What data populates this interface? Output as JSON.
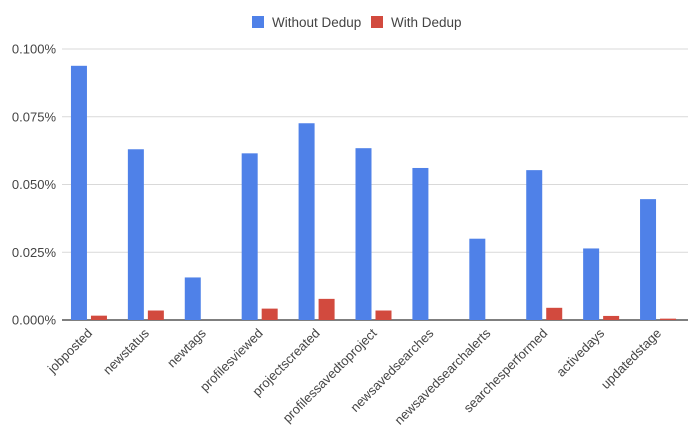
{
  "chart_data": {
    "type": "bar",
    "title": "",
    "xlabel": "",
    "ylabel": "",
    "ylim": [
      0,
      0.1
    ],
    "y_ticks": [
      "0.000%",
      "0.025%",
      "0.050%",
      "0.075%",
      "0.100%"
    ],
    "y_tick_values": [
      0,
      0.025,
      0.05,
      0.075,
      0.1
    ],
    "grid": true,
    "legend_position": "top-center",
    "categories": [
      "jobposted",
      "newstatus",
      "newtags",
      "profilesviewed",
      "projectscreated",
      "profilessavedtoproject",
      "newsavedsearches",
      "newsavedsearchalerts",
      "searchesperformed",
      "activedays",
      "updatedstage"
    ],
    "series": [
      {
        "name": "Without Dedup",
        "color": "#4f81e8",
        "values": [
          0.0938,
          0.063,
          0.0157,
          0.0615,
          0.0726,
          0.0634,
          0.0561,
          0.03,
          0.0553,
          0.0264,
          0.0446
        ]
      },
      {
        "name": "With Dedup",
        "color": "#d24a3e",
        "values": [
          0.0016,
          0.0035,
          0.0,
          0.0042,
          0.0078,
          0.0035,
          0.0,
          0.0,
          0.0045,
          0.0015,
          0.0005
        ]
      }
    ]
  }
}
